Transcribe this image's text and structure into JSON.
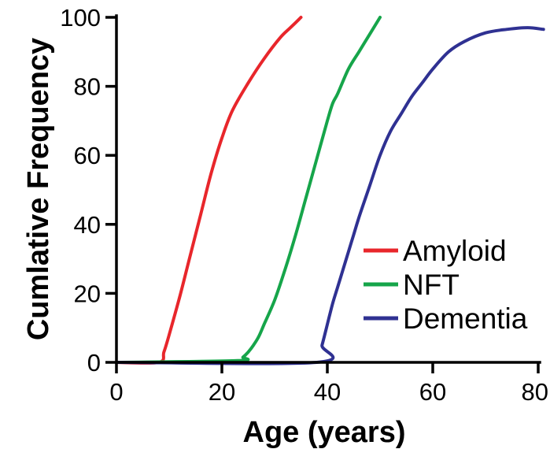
{
  "chart_data": {
    "type": "line",
    "xlabel": "Age (years)",
    "ylabel": "Cumlative Frequency",
    "xlim": [
      0,
      80
    ],
    "ylim": [
      0,
      100
    ],
    "xticks": [
      "0",
      "20",
      "40",
      "60",
      "80"
    ],
    "yticks": [
      "0",
      "20",
      "40",
      "60",
      "80",
      "100"
    ],
    "legend_position": "right",
    "series": [
      {
        "name": "Amyloid",
        "color": "#e8262b",
        "x": [
          0,
          8,
          9,
          10,
          12,
          14,
          16,
          18,
          20,
          22,
          25,
          28,
          31,
          33,
          35
        ],
        "y": [
          0,
          0,
          3,
          8,
          19,
          31,
          43,
          55,
          65,
          73,
          81,
          88,
          94,
          97,
          100
        ]
      },
      {
        "name": "NFT",
        "color": "#16a54a",
        "x": [
          0,
          23,
          24,
          25,
          26,
          27,
          28,
          30,
          32,
          34,
          36,
          38,
          40,
          41,
          42,
          44,
          46,
          48,
          50
        ],
        "y": [
          0,
          0.5,
          1.5,
          3,
          5,
          7.5,
          11,
          18,
          27,
          37,
          48,
          59,
          70,
          75,
          78,
          85,
          90,
          95,
          100
        ]
      },
      {
        "name": "Dementia",
        "color": "#2f3192",
        "x": [
          0,
          38,
          39,
          40,
          41,
          42,
          43,
          44,
          45,
          46,
          48,
          50,
          52,
          54,
          56,
          58,
          60,
          63,
          66,
          70,
          74,
          78,
          81
        ],
        "y": [
          0,
          0,
          5,
          11,
          17,
          22,
          27,
          32,
          37,
          42,
          51,
          60,
          67,
          72,
          77,
          81,
          85,
          90,
          93,
          95.5,
          96.5,
          97,
          96.5
        ]
      }
    ]
  }
}
